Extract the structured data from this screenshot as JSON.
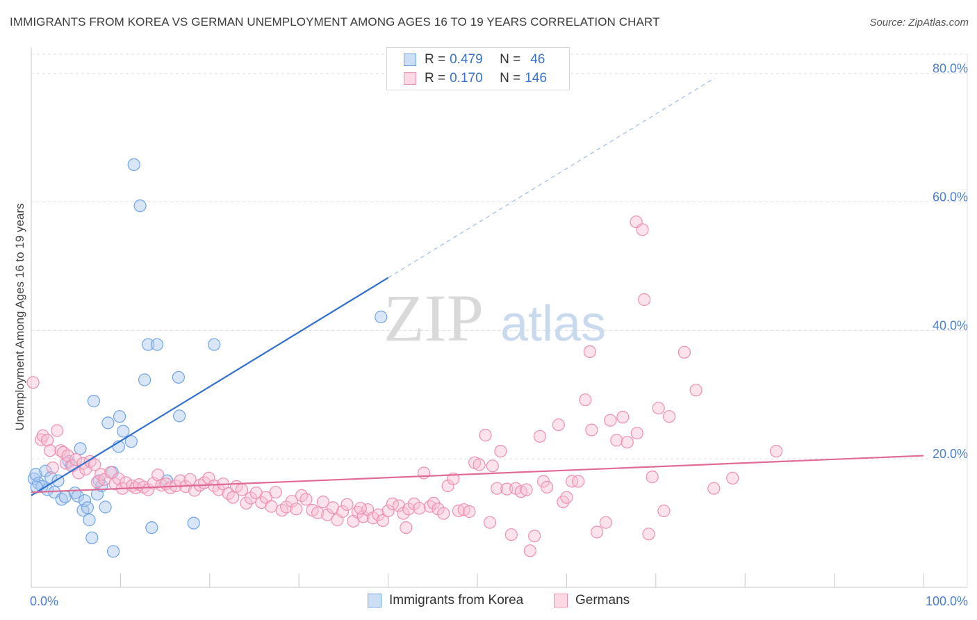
{
  "chart_data": {
    "type": "scatter",
    "title": "IMMIGRANTS FROM KOREA VS GERMAN UNEMPLOYMENT AMONG AGES 16 TO 19 YEARS CORRELATION CHART",
    "source": "Source: ZipAtlas.com",
    "ylabel": "Unemployment Among Ages 16 to 19 years",
    "xlabel": "",
    "x_tick_labels": [
      "0.0%",
      "100.0%"
    ],
    "y_ticks": [
      {
        "value": 20,
        "label": "20.0%"
      },
      {
        "value": 40,
        "label": "40.0%"
      },
      {
        "value": 60,
        "label": "60.0%"
      },
      {
        "value": 80,
        "label": "80.0%"
      }
    ],
    "xlim": [
      0,
      100
    ],
    "ylim": [
      0,
      83
    ],
    "grid": true,
    "watermark": {
      "zip": "ZIP",
      "atlas": "atlas"
    },
    "legend": {
      "position": "top-center",
      "entries": [
        {
          "r_label": "R =",
          "r_value": "0.479",
          "n_label": "N =",
          "n_value": "46"
        },
        {
          "r_label": "R =",
          "r_value": "0.170",
          "n_label": "N =",
          "n_value": "146"
        }
      ]
    },
    "series": [
      {
        "name": "Immigrants from Korea",
        "color": "#6fa3e8",
        "fill": "rgba(170,200,240,0.45)",
        "line_color": "#2f6fcd",
        "trend": {
          "x0": 0,
          "y0": 14.3,
          "x1": 40,
          "y1": 48.2,
          "dashed_to_x": 76.6,
          "dashed_to_y": 79.3
        },
        "points": [
          [
            0.3,
            16.9
          ],
          [
            0.5,
            17.6
          ],
          [
            0.8,
            16.2
          ],
          [
            1.2,
            15.7
          ],
          [
            1.6,
            18.1
          ],
          [
            1.8,
            15.2
          ],
          [
            2.2,
            17.1
          ],
          [
            2.6,
            14.8
          ],
          [
            3.0,
            16.6
          ],
          [
            3.4,
            13.7
          ],
          [
            3.8,
            14.1
          ],
          [
            4.2,
            19.6
          ],
          [
            4.5,
            19.0
          ],
          [
            4.9,
            14.7
          ],
          [
            5.2,
            14.2
          ],
          [
            5.5,
            21.6
          ],
          [
            5.8,
            12.0
          ],
          [
            6.0,
            13.5
          ],
          [
            6.3,
            12.4
          ],
          [
            6.5,
            10.5
          ],
          [
            6.8,
            7.7
          ],
          [
            7.0,
            29.0
          ],
          [
            7.4,
            14.5
          ],
          [
            7.6,
            16.6
          ],
          [
            7.9,
            15.8
          ],
          [
            8.3,
            12.5
          ],
          [
            8.6,
            25.6
          ],
          [
            9.1,
            17.9
          ],
          [
            9.2,
            5.6
          ],
          [
            9.8,
            21.9
          ],
          [
            9.9,
            26.6
          ],
          [
            10.3,
            24.3
          ],
          [
            11.2,
            22.7
          ],
          [
            11.5,
            65.8
          ],
          [
            12.2,
            59.4
          ],
          [
            12.7,
            32.3
          ],
          [
            13.1,
            37.8
          ],
          [
            13.5,
            9.3
          ],
          [
            14.1,
            37.8
          ],
          [
            15.2,
            16.6
          ],
          [
            16.5,
            32.7
          ],
          [
            16.6,
            26.7
          ],
          [
            18.2,
            10.0
          ],
          [
            20.5,
            37.8
          ],
          [
            39.2,
            42.1
          ],
          [
            0.6,
            15.6
          ]
        ]
      },
      {
        "name": "Germans",
        "color": "#ee8fb0",
        "fill": "rgba(248,190,210,0.45)",
        "line_color": "#e06b97",
        "trend": {
          "x0": 0,
          "y0": 14.8,
          "x1": 100,
          "y1": 20.5
        },
        "points": [
          [
            0.2,
            31.9
          ],
          [
            1.1,
            23.0
          ],
          [
            1.3,
            23.6
          ],
          [
            1.8,
            22.9
          ],
          [
            2.1,
            21.3
          ],
          [
            2.4,
            18.6
          ],
          [
            2.9,
            24.4
          ],
          [
            3.3,
            21.3
          ],
          [
            3.6,
            21.0
          ],
          [
            3.9,
            19.3
          ],
          [
            4.1,
            20.5
          ],
          [
            4.6,
            18.9
          ],
          [
            5.0,
            19.9
          ],
          [
            5.3,
            17.8
          ],
          [
            5.8,
            19.3
          ],
          [
            6.1,
            18.4
          ],
          [
            6.6,
            19.6
          ],
          [
            7.1,
            19.1
          ],
          [
            7.4,
            16.4
          ],
          [
            7.8,
            17.6
          ],
          [
            8.2,
            16.8
          ],
          [
            8.9,
            17.9
          ],
          [
            9.4,
            16.1
          ],
          [
            9.8,
            16.9
          ],
          [
            10.2,
            15.4
          ],
          [
            10.6,
            16.3
          ],
          [
            11.3,
            15.8
          ],
          [
            11.7,
            15.5
          ],
          [
            12.1,
            16.0
          ],
          [
            12.6,
            15.6
          ],
          [
            13.1,
            15.2
          ],
          [
            13.7,
            16.2
          ],
          [
            14.2,
            17.5
          ],
          [
            14.6,
            15.9
          ],
          [
            15.1,
            16.1
          ],
          [
            15.6,
            15.5
          ],
          [
            16.2,
            15.8
          ],
          [
            16.7,
            16.6
          ],
          [
            17.3,
            15.7
          ],
          [
            17.8,
            16.8
          ],
          [
            18.3,
            15.1
          ],
          [
            18.9,
            15.9
          ],
          [
            19.4,
            16.3
          ],
          [
            19.9,
            17.0
          ],
          [
            20.5,
            15.8
          ],
          [
            21.0,
            15.2
          ],
          [
            21.5,
            16.1
          ],
          [
            22.1,
            14.6
          ],
          [
            22.6,
            14.0
          ],
          [
            23.0,
            15.7
          ],
          [
            23.6,
            15.2
          ],
          [
            24.1,
            13.1
          ],
          [
            24.6,
            13.9
          ],
          [
            25.2,
            14.7
          ],
          [
            25.8,
            13.2
          ],
          [
            26.3,
            14.0
          ],
          [
            26.9,
            12.6
          ],
          [
            27.4,
            14.8
          ],
          [
            28.1,
            12.0
          ],
          [
            28.6,
            12.5
          ],
          [
            29.2,
            13.4
          ],
          [
            29.7,
            12.2
          ],
          [
            30.3,
            14.3
          ],
          [
            30.8,
            13.7
          ],
          [
            31.5,
            12.0
          ],
          [
            32.1,
            11.6
          ],
          [
            32.7,
            13.3
          ],
          [
            33.2,
            11.3
          ],
          [
            33.8,
            12.4
          ],
          [
            34.3,
            10.5
          ],
          [
            34.9,
            11.8
          ],
          [
            35.4,
            12.9
          ],
          [
            36.1,
            10.3
          ],
          [
            36.6,
            11.7
          ],
          [
            37.2,
            11.0
          ],
          [
            37.7,
            12.1
          ],
          [
            38.3,
            10.8
          ],
          [
            38.9,
            11.3
          ],
          [
            39.4,
            10.4
          ],
          [
            40.0,
            11.9
          ],
          [
            40.5,
            13.0
          ],
          [
            41.2,
            12.7
          ],
          [
            41.7,
            11.5
          ],
          [
            42.3,
            12.2
          ],
          [
            42.9,
            13.0
          ],
          [
            43.5,
            12.3
          ],
          [
            44.0,
            17.8
          ],
          [
            44.7,
            12.6
          ],
          [
            45.1,
            13.1
          ],
          [
            45.6,
            12.2
          ],
          [
            46.2,
            11.5
          ],
          [
            46.7,
            15.8
          ],
          [
            47.3,
            16.9
          ],
          [
            47.9,
            11.9
          ],
          [
            48.5,
            12.1
          ],
          [
            49.1,
            11.8
          ],
          [
            49.7,
            19.4
          ],
          [
            50.2,
            19.1
          ],
          [
            50.9,
            23.7
          ],
          [
            51.4,
            10.1
          ],
          [
            51.7,
            18.9
          ],
          [
            52.2,
            15.4
          ],
          [
            52.6,
            21.2
          ],
          [
            53.3,
            15.3
          ],
          [
            53.8,
            8.2
          ],
          [
            54.3,
            15.4
          ],
          [
            54.9,
            14.9
          ],
          [
            55.5,
            15.2
          ],
          [
            55.9,
            5.7
          ],
          [
            56.4,
            8.0
          ],
          [
            57.0,
            23.5
          ],
          [
            57.4,
            16.5
          ],
          [
            57.8,
            15.6
          ],
          [
            59.1,
            25.3
          ],
          [
            59.6,
            13.3
          ],
          [
            60.0,
            14.0
          ],
          [
            60.6,
            16.5
          ],
          [
            61.3,
            16.5
          ],
          [
            62.1,
            29.2
          ],
          [
            62.6,
            36.7
          ],
          [
            62.8,
            24.5
          ],
          [
            63.4,
            8.6
          ],
          [
            64.4,
            10.1
          ],
          [
            64.9,
            26.0
          ],
          [
            65.6,
            22.9
          ],
          [
            66.3,
            26.5
          ],
          [
            66.8,
            22.6
          ],
          [
            67.8,
            56.9
          ],
          [
            67.9,
            24.0
          ],
          [
            68.5,
            55.7
          ],
          [
            68.7,
            44.8
          ],
          [
            69.2,
            8.3
          ],
          [
            69.6,
            17.2
          ],
          [
            70.3,
            27.9
          ],
          [
            70.9,
            11.9
          ],
          [
            71.5,
            26.6
          ],
          [
            73.2,
            36.6
          ],
          [
            74.5,
            30.7
          ],
          [
            76.5,
            15.4
          ],
          [
            78.6,
            17.0
          ],
          [
            83.5,
            21.2
          ],
          [
            36.9,
            12.3
          ],
          [
            42.0,
            9.3
          ]
        ]
      }
    ]
  }
}
